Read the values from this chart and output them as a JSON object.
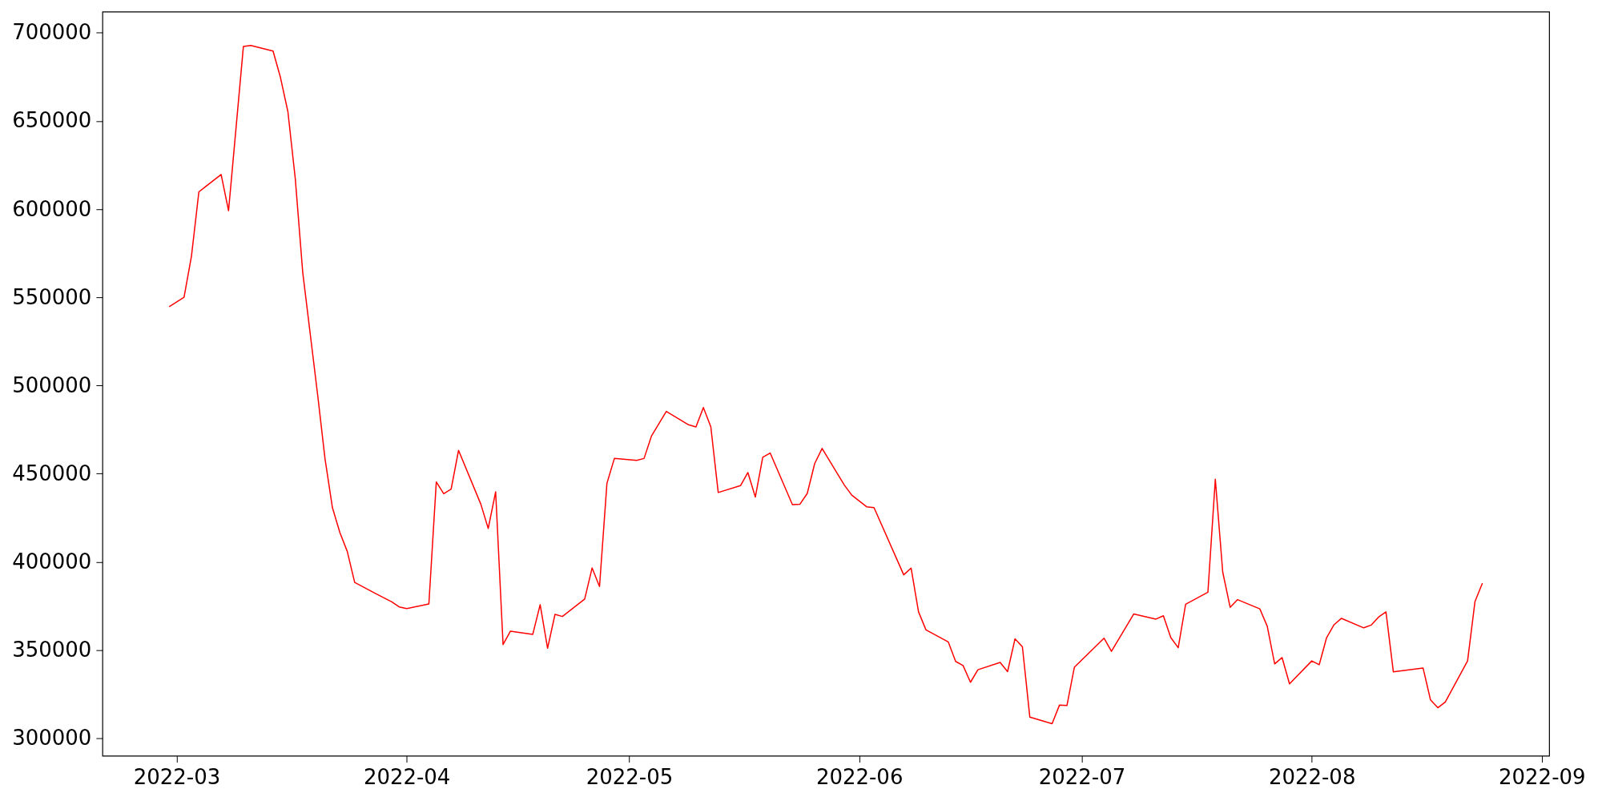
{
  "chart_data": {
    "type": "line",
    "x": [
      "2022-02-28",
      "2022-03-02",
      "2022-03-03",
      "2022-03-04",
      "2022-03-07",
      "2022-03-08",
      "2022-03-10",
      "2022-03-11",
      "2022-03-14",
      "2022-03-15",
      "2022-03-16",
      "2022-03-17",
      "2022-03-18",
      "2022-03-20",
      "2022-03-21",
      "2022-03-22",
      "2022-03-23",
      "2022-03-24",
      "2022-03-25",
      "2022-03-28",
      "2022-03-30",
      "2022-03-31",
      "2022-04-01",
      "2022-04-04",
      "2022-04-05",
      "2022-04-06",
      "2022-04-07",
      "2022-04-08",
      "2022-04-11",
      "2022-04-12",
      "2022-04-13",
      "2022-04-14",
      "2022-04-15",
      "2022-04-18",
      "2022-04-19",
      "2022-04-20",
      "2022-04-21",
      "2022-04-22",
      "2022-04-25",
      "2022-04-26",
      "2022-04-27",
      "2022-04-28",
      "2022-04-29",
      "2022-05-02",
      "2022-05-03",
      "2022-05-04",
      "2022-05-06",
      "2022-05-09",
      "2022-05-10",
      "2022-05-11",
      "2022-05-12",
      "2022-05-13",
      "2022-05-16",
      "2022-05-17",
      "2022-05-18",
      "2022-05-19",
      "2022-05-20",
      "2022-05-23",
      "2022-05-24",
      "2022-05-25",
      "2022-05-26",
      "2022-05-27",
      "2022-05-30",
      "2022-05-31",
      "2022-06-02",
      "2022-06-03",
      "2022-06-07",
      "2022-06-08",
      "2022-06-09",
      "2022-06-10",
      "2022-06-13",
      "2022-06-14",
      "2022-06-15",
      "2022-06-16",
      "2022-06-17",
      "2022-06-20",
      "2022-06-21",
      "2022-06-22",
      "2022-06-23",
      "2022-06-24",
      "2022-06-27",
      "2022-06-28",
      "2022-06-29",
      "2022-06-30",
      "2022-07-04",
      "2022-07-05",
      "2022-07-08",
      "2022-07-11",
      "2022-07-12",
      "2022-07-13",
      "2022-07-14",
      "2022-07-15",
      "2022-07-18",
      "2022-07-19",
      "2022-07-20",
      "2022-07-21",
      "2022-07-22",
      "2022-07-25",
      "2022-07-26",
      "2022-07-27",
      "2022-07-28",
      "2022-07-29",
      "2022-08-01",
      "2022-08-02",
      "2022-08-03",
      "2022-08-04",
      "2022-08-05",
      "2022-08-08",
      "2022-08-09",
      "2022-08-10",
      "2022-08-11",
      "2022-08-12",
      "2022-08-16",
      "2022-08-17",
      "2022-08-18",
      "2022-08-19",
      "2022-08-22",
      "2022-08-23",
      "2022-08-24"
    ],
    "series": [
      {
        "color": "#ff0000",
        "values": [
          544700,
          550000,
          573300,
          609800,
          619600,
          599100,
          692200,
          692800,
          689600,
          674600,
          655200,
          617000,
          564100,
          495000,
          458500,
          430700,
          416600,
          405900,
          388300,
          381600,
          377300,
          374400,
          373500,
          376100,
          445300,
          438600,
          441200,
          463200,
          432700,
          418900,
          439700,
          353100,
          360700,
          358800,
          375700,
          350950,
          370200,
          369000,
          378900,
          396500,
          386000,
          444500,
          458600,
          457500,
          458600,
          471300,
          485300,
          477700,
          476500,
          487500,
          476600,
          439300,
          443200,
          450600,
          436700,
          459300,
          461700,
          432400,
          432600,
          438800,
          455700,
          464300,
          443500,
          437800,
          431200,
          430700,
          392600,
          396400,
          371600,
          361400,
          354600,
          343500,
          341200,
          331700,
          338800,
          342900,
          337700,
          356300,
          351800,
          311900,
          308200,
          318800,
          318500,
          340200,
          356700,
          349200,
          370400,
          367500,
          369400,
          357000,
          351300,
          375950,
          382700,
          446800,
          394150,
          374200,
          378550,
          373300,
          363450,
          342100,
          345700,
          330800,
          343800,
          341600,
          357000,
          364300,
          367950,
          362550,
          364100,
          368650,
          371600,
          337550,
          339800,
          321750,
          317250,
          320550,
          343800,
          377500,
          387950
        ]
      }
    ],
    "xlim": [
      "2022-02-19",
      "2022-09-02"
    ],
    "xticks": [
      {
        "value": "2022-03-01",
        "label": "2022-03"
      },
      {
        "value": "2022-04-01",
        "label": "2022-04"
      },
      {
        "value": "2022-05-01",
        "label": "2022-05"
      },
      {
        "value": "2022-06-01",
        "label": "2022-06"
      },
      {
        "value": "2022-07-01",
        "label": "2022-07"
      },
      {
        "value": "2022-08-01",
        "label": "2022-08"
      },
      {
        "value": "2022-09-01",
        "label": "2022-09"
      }
    ],
    "ylim": [
      290000,
      712000
    ],
    "yticks": [
      300000,
      350000,
      400000,
      450000,
      500000,
      550000,
      600000,
      650000,
      700000
    ],
    "grid": false,
    "legend": false,
    "marker": "none",
    "line_style": "solid"
  }
}
